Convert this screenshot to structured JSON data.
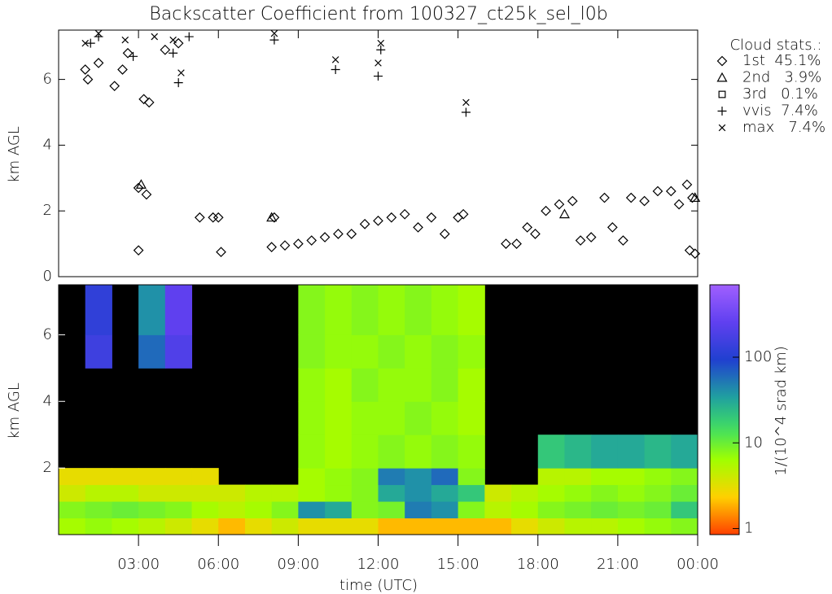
{
  "chart_data": [
    {
      "type": "scatter",
      "title": "Backscatter Coefficient from 100327_ct25k_sel_l0b",
      "ylabel": "km AGL",
      "xlim": [
        0,
        24
      ],
      "ylim": [
        0,
        7.5
      ],
      "yticks": [
        0,
        2,
        4,
        6
      ],
      "legend_title": "Cloud stats.:",
      "legend": "upper right",
      "series": [
        {
          "name": "1st  45.1%",
          "marker": "diamond",
          "color": "#000000",
          "x": [
            1.0,
            1.1,
            1.5,
            2.1,
            2.4,
            2.6,
            3.2,
            3.4,
            3.0,
            3.3,
            3.0,
            4.0,
            4.5,
            5.3,
            5.8,
            6.0,
            6.1,
            8.1,
            8.0,
            8.5,
            9.0,
            9.5,
            10.0,
            10.5,
            11.0,
            11.5,
            12.0,
            12.5,
            13.0,
            13.5,
            14.0,
            14.5,
            15.0,
            15.2,
            16.8,
            17.2,
            17.6,
            17.9,
            18.3,
            18.8,
            19.3,
            19.6,
            20.0,
            20.5,
            20.8,
            21.2,
            21.5,
            22.0,
            22.5,
            23.0,
            23.3,
            23.6,
            23.8,
            23.9,
            23.7
          ],
          "y": [
            6.3,
            6.0,
            6.5,
            5.8,
            6.3,
            6.8,
            5.4,
            5.3,
            2.7,
            2.5,
            0.8,
            6.9,
            7.1,
            1.8,
            1.8,
            1.8,
            0.75,
            1.8,
            0.9,
            0.95,
            1.0,
            1.1,
            1.2,
            1.3,
            1.3,
            1.6,
            1.7,
            1.8,
            1.9,
            1.5,
            1.8,
            1.3,
            1.8,
            1.9,
            1.0,
            1.0,
            1.5,
            1.3,
            2.0,
            2.2,
            2.3,
            1.1,
            1.2,
            2.4,
            1.5,
            1.1,
            2.4,
            2.3,
            2.6,
            2.6,
            2.2,
            2.8,
            2.4,
            0.7,
            0.8
          ]
        },
        {
          "name": "2nd   3.9%",
          "marker": "triangle",
          "color": "#000000",
          "x": [
            3.1,
            8.0,
            19.0,
            23.9
          ],
          "y": [
            2.8,
            1.8,
            1.9,
            2.4
          ]
        },
        {
          "name": "3rd   0.1%",
          "marker": "square",
          "color": "#000000",
          "x": [],
          "y": []
        },
        {
          "name": "vvis  7.4%",
          "marker": "plus",
          "color": "#000000",
          "x": [
            1.2,
            1.5,
            4.3,
            4.5,
            4.9,
            8.1,
            10.4,
            12.0,
            12.1,
            15.3,
            2.8
          ],
          "y": [
            7.1,
            7.3,
            6.8,
            5.9,
            7.3,
            7.2,
            6.3,
            6.1,
            6.9,
            5.0,
            6.7
          ]
        },
        {
          "name": "max   7.4%",
          "marker": "x",
          "color": "#000000",
          "x": [
            1.0,
            1.5,
            2.5,
            4.3,
            4.6,
            8.1,
            10.4,
            12.0,
            12.1,
            15.3,
            3.6
          ],
          "y": [
            7.1,
            7.4,
            7.2,
            7.2,
            6.2,
            7.4,
            6.6,
            6.5,
            7.1,
            5.3,
            7.3
          ]
        }
      ]
    },
    {
      "type": "heatmap",
      "ylabel": "km AGL",
      "xlabel": "time (UTC)",
      "xlim": [
        0,
        24
      ],
      "ylim": [
        0,
        7.5
      ],
      "yticks": [
        2,
        4,
        6
      ],
      "xticks": [
        {
          "value": 3,
          "label": "03:00"
        },
        {
          "value": 6,
          "label": "06:00"
        },
        {
          "value": 9,
          "label": "09:00"
        },
        {
          "value": 12,
          "label": "12:00"
        },
        {
          "value": 15,
          "label": "15:00"
        },
        {
          "value": 18,
          "label": "18:00"
        },
        {
          "value": 21,
          "label": "21:00"
        },
        {
          "value": 24,
          "label": "00:00"
        }
      ],
      "x_edges": [
        0,
        1,
        2,
        3,
        4,
        5,
        6,
        7,
        8,
        9,
        10,
        11,
        12,
        13,
        14,
        15,
        16,
        17,
        18,
        19,
        20,
        21,
        22,
        23,
        24
      ],
      "y_edges": [
        0,
        0.5,
        1,
        1.5,
        2,
        3,
        4,
        5,
        6,
        7.5
      ],
      "z": [
        [
          6,
          7,
          6,
          5,
          4,
          3,
          2,
          3,
          4,
          3,
          3,
          3,
          2,
          2,
          2,
          2,
          2,
          3,
          4,
          5,
          5,
          6,
          7,
          8
        ],
        [
          8,
          9,
          10,
          9,
          8,
          6,
          5,
          6,
          8,
          40,
          30,
          8,
          9,
          50,
          40,
          8,
          5,
          6,
          8,
          9,
          10,
          9,
          10,
          20
        ],
        [
          4,
          5,
          5,
          4,
          4,
          4,
          4,
          5,
          5,
          6,
          7,
          8,
          30,
          40,
          30,
          20,
          4,
          5,
          6,
          7,
          8,
          7,
          8,
          10
        ],
        [
          3,
          3,
          3,
          3,
          3,
          3,
          null,
          null,
          null,
          6,
          7,
          8,
          50,
          40,
          60,
          8,
          null,
          null,
          5,
          5,
          6,
          6,
          7,
          8
        ],
        [
          null,
          null,
          null,
          null,
          null,
          null,
          null,
          null,
          null,
          7,
          6,
          7,
          8,
          7,
          8,
          7,
          null,
          null,
          20,
          25,
          30,
          30,
          25,
          30
        ],
        [
          null,
          null,
          null,
          null,
          null,
          null,
          null,
          null,
          null,
          7,
          6,
          7,
          7,
          8,
          7,
          6,
          null,
          null,
          null,
          null,
          null,
          null,
          null,
          null
        ],
        [
          null,
          null,
          null,
          null,
          null,
          null,
          null,
          null,
          null,
          7,
          6,
          8,
          7,
          7,
          8,
          6,
          null,
          null,
          null,
          null,
          null,
          null,
          null,
          null
        ],
        [
          null,
          150,
          null,
          60,
          200,
          null,
          null,
          null,
          null,
          8,
          7,
          7,
          8,
          7,
          8,
          7,
          null,
          null,
          null,
          null,
          null,
          null,
          null,
          null
        ],
        [
          null,
          120,
          null,
          40,
          250,
          null,
          null,
          null,
          null,
          8,
          7,
          8,
          7,
          8,
          7,
          6,
          null,
          null,
          null,
          null,
          null,
          null,
          null,
          null
        ]
      ],
      "clim": [
        0.85,
        700
      ],
      "log_scale": true,
      "cticks": [
        1,
        10,
        100
      ],
      "clabel": "1/(10^4 srad km)"
    }
  ]
}
